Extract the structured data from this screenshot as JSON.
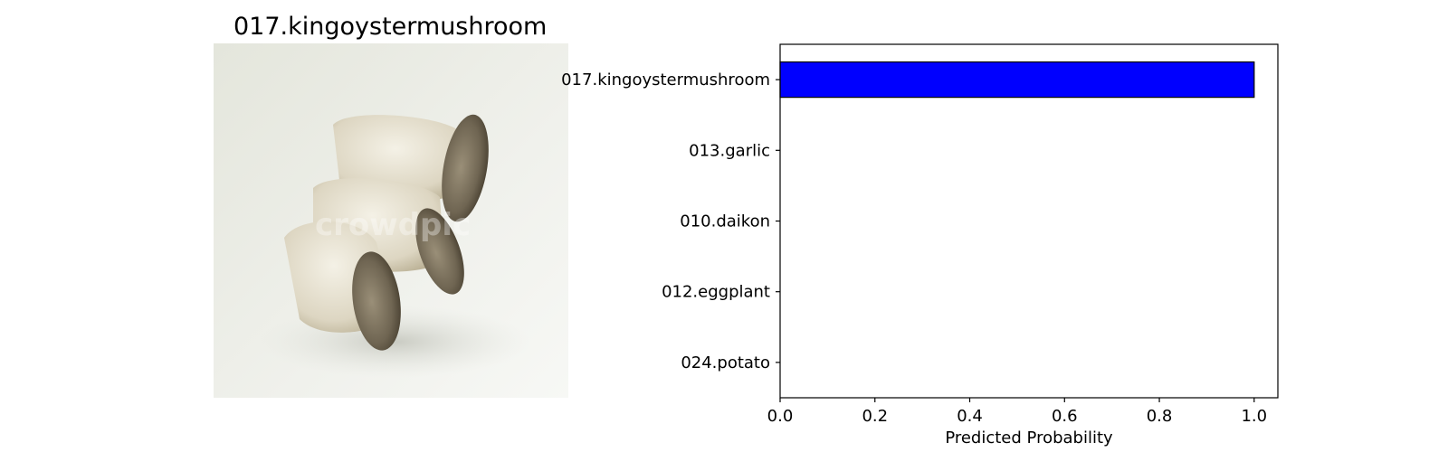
{
  "image_title": "017.kingoystermushroom",
  "photo": {
    "subject": "king oyster mushrooms",
    "watermark_text": "crowdpic"
  },
  "colors": {
    "bar": "#0000ff",
    "edge": "#000000"
  },
  "chart_data": {
    "type": "bar",
    "orientation": "horizontal",
    "categories": [
      "017.kingoystermushroom",
      "013.garlic",
      "010.daikon",
      "012.eggplant",
      "024.potato"
    ],
    "values": [
      1.0,
      0.0,
      0.0,
      0.0,
      0.0
    ],
    "xlabel": "Predicted Probability",
    "ylabel": "",
    "xlim": [
      0.0,
      1.05
    ],
    "xticks": [
      0.0,
      0.2,
      0.4,
      0.6,
      0.8,
      1.0
    ],
    "xtick_labels": [
      "0.0",
      "0.2",
      "0.4",
      "0.6",
      "0.8",
      "1.0"
    ],
    "grid": false
  }
}
